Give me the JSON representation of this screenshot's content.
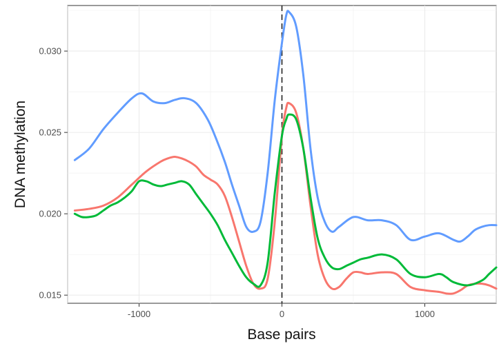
{
  "chart_data": {
    "type": "line",
    "xlabel": "Base pairs",
    "ylabel": "DNA methylation",
    "xlim": [
      -1500,
      1500
    ],
    "ylim": [
      0.0145,
      0.0328
    ],
    "x_ticks": [
      -1000,
      0,
      1000
    ],
    "x_tick_labels": [
      "-1000",
      "0",
      "1000"
    ],
    "y_ticks": [
      0.015,
      0.02,
      0.025,
      0.03
    ],
    "y_tick_labels": [
      "0.015",
      "0.020",
      "0.025",
      "0.030"
    ],
    "grid": true,
    "vertical_reference_line": {
      "x": 0,
      "style": "dashed"
    },
    "legend": "none",
    "series": [
      {
        "color": "#619CFF",
        "x": [
          -1450,
          -1350,
          -1250,
          -1150,
          -1050,
          -980,
          -900,
          -820,
          -750,
          -680,
          -600,
          -520,
          -460,
          -400,
          -350,
          -300,
          -250,
          -200,
          -150,
          -100,
          -50,
          0,
          30,
          50,
          100,
          150,
          200,
          250,
          300,
          350,
          400,
          500,
          600,
          700,
          800,
          900,
          1000,
          1100,
          1200,
          1250,
          1300,
          1350,
          1400,
          1450,
          1500
        ],
        "y": [
          0.0233,
          0.024,
          0.0252,
          0.0262,
          0.0271,
          0.0274,
          0.0269,
          0.0268,
          0.027,
          0.0271,
          0.0268,
          0.0258,
          0.0246,
          0.0232,
          0.0218,
          0.0205,
          0.0192,
          0.0189,
          0.0195,
          0.0225,
          0.027,
          0.0305,
          0.0322,
          0.0324,
          0.0315,
          0.0285,
          0.024,
          0.021,
          0.0195,
          0.0189,
          0.0192,
          0.0198,
          0.0196,
          0.0196,
          0.0193,
          0.0184,
          0.0186,
          0.0188,
          0.0184,
          0.0183,
          0.0186,
          0.019,
          0.0192,
          0.0193,
          0.0193
        ]
      },
      {
        "color": "#F8766D",
        "x": [
          -1450,
          -1350,
          -1250,
          -1150,
          -1050,
          -950,
          -850,
          -800,
          -750,
          -700,
          -650,
          -600,
          -550,
          -500,
          -450,
          -400,
          -350,
          -300,
          -250,
          -200,
          -150,
          -100,
          -50,
          0,
          30,
          50,
          100,
          150,
          200,
          250,
          300,
          350,
          400,
          450,
          500,
          550,
          600,
          700,
          800,
          900,
          1000,
          1100,
          1150,
          1200,
          1250,
          1300,
          1350,
          1400,
          1450,
          1500
        ],
        "y": [
          0.0202,
          0.0203,
          0.0205,
          0.021,
          0.0218,
          0.0226,
          0.0232,
          0.0234,
          0.0235,
          0.0234,
          0.0232,
          0.0229,
          0.0224,
          0.0221,
          0.0218,
          0.0211,
          0.0198,
          0.0183,
          0.0168,
          0.0157,
          0.0154,
          0.016,
          0.0195,
          0.0248,
          0.0265,
          0.0268,
          0.0262,
          0.024,
          0.0205,
          0.0175,
          0.016,
          0.0154,
          0.0155,
          0.016,
          0.0164,
          0.0164,
          0.0163,
          0.0164,
          0.0163,
          0.0155,
          0.0153,
          0.0152,
          0.0151,
          0.0151,
          0.0153,
          0.0156,
          0.0157,
          0.0157,
          0.0156,
          0.0154
        ]
      },
      {
        "color": "#00BA38",
        "x": [
          -1450,
          -1400,
          -1350,
          -1300,
          -1250,
          -1200,
          -1150,
          -1100,
          -1050,
          -1000,
          -950,
          -900,
          -850,
          -800,
          -750,
          -700,
          -650,
          -600,
          -550,
          -500,
          -450,
          -400,
          -350,
          -300,
          -250,
          -200,
          -150,
          -100,
          -50,
          0,
          30,
          50,
          100,
          150,
          200,
          250,
          300,
          350,
          400,
          450,
          500,
          550,
          600,
          700,
          800,
          900,
          1000,
          1100,
          1150,
          1200,
          1300,
          1400,
          1450,
          1500
        ],
        "y": [
          0.02,
          0.0198,
          0.0198,
          0.0199,
          0.0202,
          0.0205,
          0.0207,
          0.021,
          0.0214,
          0.022,
          0.022,
          0.0218,
          0.0217,
          0.0218,
          0.0219,
          0.022,
          0.0218,
          0.0212,
          0.0206,
          0.02,
          0.0193,
          0.0184,
          0.0176,
          0.0168,
          0.0161,
          0.0157,
          0.0156,
          0.017,
          0.0213,
          0.0248,
          0.0258,
          0.0261,
          0.0258,
          0.024,
          0.021,
          0.0185,
          0.0173,
          0.0167,
          0.0166,
          0.0168,
          0.017,
          0.0172,
          0.0173,
          0.0175,
          0.0172,
          0.0163,
          0.0161,
          0.0163,
          0.0161,
          0.0158,
          0.0156,
          0.0159,
          0.0163,
          0.0167
        ]
      }
    ]
  }
}
